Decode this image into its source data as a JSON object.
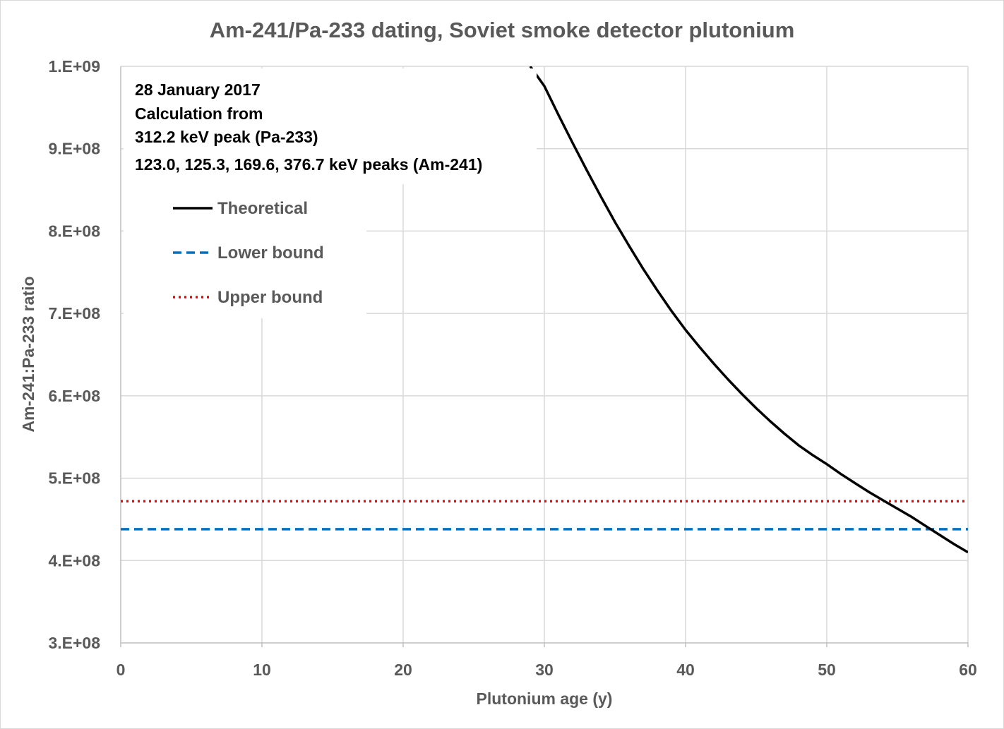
{
  "chart_data": {
    "type": "line",
    "title": "Am-241/Pa-233 dating, Soviet smoke detector plutonium",
    "xlabel": "Plutonium age (y)",
    "ylabel": "Am-241:Pa-233 ratio",
    "xlim": [
      0,
      60
    ],
    "ylim": [
      300000000,
      1000000000
    ],
    "x_ticks": [
      0,
      10,
      20,
      30,
      40,
      50,
      60
    ],
    "x_tick_labels": [
      "0",
      "10",
      "20",
      "30",
      "40",
      "50",
      "60"
    ],
    "y_ticks": [
      300000000,
      400000000,
      500000000,
      600000000,
      700000000,
      800000000,
      900000000,
      1000000000
    ],
    "y_tick_labels": [
      "3.E+08",
      "4.E+08",
      "5.E+08",
      "6.E+08",
      "7.E+08",
      "8.E+08",
      "9.E+08",
      "1.E+09"
    ],
    "grid": true,
    "annotation": [
      "28 January 2017",
      "Calculation from",
      "312.2 keV peak (Pa-233)",
      "123.0, 125.3, 169.6, 376.7 keV peaks (Am-241)"
    ],
    "legend_position": "top-left",
    "series": [
      {
        "name": "Theoretical",
        "style": "solid",
        "color": "#000000",
        "x": [
          29,
          30,
          31,
          32,
          33,
          34,
          35,
          36,
          37,
          38,
          39,
          40,
          41,
          42,
          43,
          44,
          45,
          46,
          47,
          48,
          49,
          50,
          51,
          52,
          53,
          54,
          55,
          56,
          57,
          58,
          59,
          60
        ],
        "values": [
          1000000000,
          976000000,
          941000000,
          907000000,
          874000000,
          842000000,
          811000000,
          782000000,
          754000000,
          728000000,
          703000000,
          680000000,
          659000000,
          639000000,
          620000000,
          602000000,
          585000000,
          569000000,
          554000000,
          540000000,
          528000000,
          517000000,
          505000000,
          494000000,
          483000000,
          473000000,
          463000000,
          453000000,
          442000000,
          431000000,
          420000000,
          410000000
        ]
      },
      {
        "name": "Lower bound",
        "style": "dashed",
        "color": "#0070c0",
        "x": [
          0,
          60
        ],
        "values": [
          438000000,
          438000000
        ]
      },
      {
        "name": "Upper bound",
        "style": "dotted",
        "color": "#ff0000",
        "x": [
          0,
          60
        ],
        "values": [
          472000000,
          472000000
        ]
      }
    ]
  }
}
